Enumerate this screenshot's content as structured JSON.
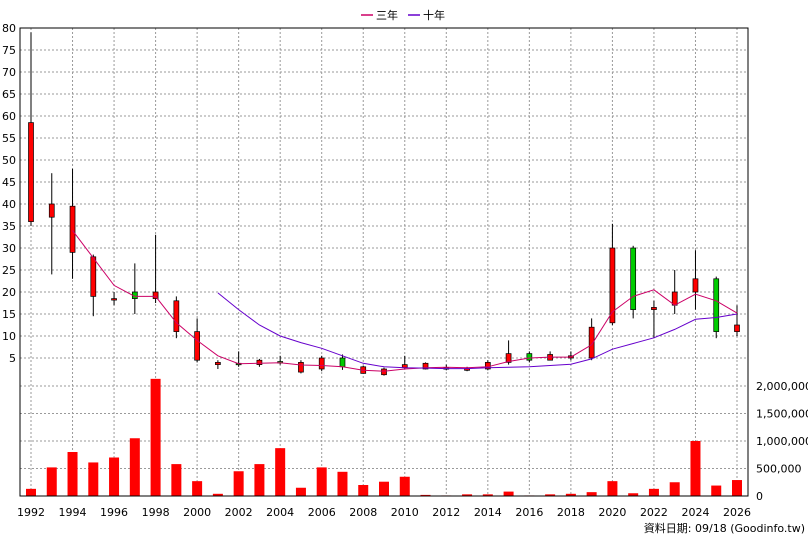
{
  "chart_data": {
    "type": "candlestick+bar",
    "legend": [
      "三年",
      "十年"
    ],
    "legend_position": "top-center",
    "source_note": "資料日期: 09/18 (Goodinfo.tw)",
    "grid": true,
    "price_axis": {
      "min": 0,
      "max": 80,
      "ticks": [
        5,
        10,
        15,
        20,
        25,
        30,
        35,
        40,
        45,
        50,
        55,
        60,
        65,
        70,
        75,
        80
      ]
    },
    "volume_axis": {
      "min": 0,
      "max": 2000000,
      "ticks": [
        0,
        500000,
        1000000,
        1500000,
        2000000
      ],
      "tick_labels": [
        "0",
        "500,000",
        "1,000,000",
        "1,500,000",
        "2,000,000"
      ]
    },
    "x_ticks": [
      "1992",
      "1994",
      "1996",
      "1998",
      "2000",
      "2002",
      "2004",
      "2006",
      "2008",
      "2010",
      "2012",
      "2014",
      "2016",
      "2018",
      "2020",
      "2022",
      "2024",
      "2026"
    ],
    "candles": [
      {
        "year": 1992,
        "open": 36,
        "high": 79,
        "low": 35,
        "close": 58.5
      },
      {
        "year": 1993,
        "open": 37,
        "high": 47,
        "low": 24,
        "close": 40
      },
      {
        "year": 1994,
        "open": 29,
        "high": 48,
        "low": 23,
        "close": 39.5
      },
      {
        "year": 1995,
        "open": 19,
        "high": 28.5,
        "low": 14.5,
        "close": 28
      },
      {
        "year": 1996,
        "open": 18.5,
        "high": 20,
        "low": 17,
        "close": 18.5
      },
      {
        "year": 1997,
        "open": 20,
        "high": 26.5,
        "low": 15,
        "close": 18.5
      },
      {
        "year": 1998,
        "open": 18.5,
        "high": 33,
        "low": 17.5,
        "close": 20
      },
      {
        "year": 1999,
        "open": 11,
        "high": 19,
        "low": 9.5,
        "close": 18
      },
      {
        "year": 2000,
        "open": 4.5,
        "high": 14,
        "low": 4,
        "close": 11
      },
      {
        "year": 2001,
        "open": 3.5,
        "high": 4.5,
        "low": 2.5,
        "close": 4
      },
      {
        "year": 2002,
        "open": 3.8,
        "high": 6.5,
        "low": 3,
        "close": 3.5
      },
      {
        "year": 2003,
        "open": 3.5,
        "high": 4.8,
        "low": 3,
        "close": 4.5
      },
      {
        "year": 2004,
        "open": 4.2,
        "high": 5.5,
        "low": 3.5,
        "close": 4
      },
      {
        "year": 2005,
        "open": 1.8,
        "high": 4.5,
        "low": 1.5,
        "close": 4
      },
      {
        "year": 2006,
        "open": 2.5,
        "high": 5.5,
        "low": 2,
        "close": 5
      },
      {
        "year": 2007,
        "open": 5,
        "high": 5.8,
        "low": 2.3,
        "close": 3
      },
      {
        "year": 2008,
        "open": 1.5,
        "high": 3.2,
        "low": 1.5,
        "close": 3
      },
      {
        "year": 2009,
        "open": 1.2,
        "high": 2.8,
        "low": 1,
        "close": 2.5
      },
      {
        "year": 2010,
        "open": 2.8,
        "high": 5.5,
        "low": 2.5,
        "close": 3.5
      },
      {
        "year": 2011,
        "open": 2.5,
        "high": 4,
        "low": 2.4,
        "close": 3.8
      },
      {
        "year": 2012,
        "open": 2.8,
        "high": 3.5,
        "low": 2.2,
        "close": 2.5
      },
      {
        "year": 2013,
        "open": 2.2,
        "high": 3,
        "low": 2.0,
        "close": 2.6
      },
      {
        "year": 2014,
        "open": 2.5,
        "high": 4.5,
        "low": 2.2,
        "close": 4
      },
      {
        "year": 2015,
        "open": 4,
        "high": 9,
        "low": 3.5,
        "close": 6
      },
      {
        "year": 2016,
        "open": 6,
        "high": 6.5,
        "low": 4.0,
        "close": 4.5
      },
      {
        "year": 2017,
        "open": 4.5,
        "high": 6.5,
        "low": 4.5,
        "close": 5.8
      },
      {
        "year": 2018,
        "open": 5,
        "high": 6.5,
        "low": 4.5,
        "close": 5.5
      },
      {
        "year": 2019,
        "open": 5,
        "high": 14,
        "low": 4.5,
        "close": 12
      },
      {
        "year": 2020,
        "open": 13,
        "high": 35.5,
        "low": 12.5,
        "close": 30
      },
      {
        "year": 2021,
        "open": 30,
        "high": 30.5,
        "low": 14,
        "close": 16
      },
      {
        "year": 2022,
        "open": 16,
        "high": 18,
        "low": 9.5,
        "close": 16.5
      },
      {
        "year": 2023,
        "open": 17,
        "high": 25,
        "low": 15,
        "close": 20
      },
      {
        "year": 2024,
        "open": 20,
        "high": 29.5,
        "low": 16,
        "close": 23
      },
      {
        "year": 2025,
        "open": 23,
        "high": 23.5,
        "low": 9.5,
        "close": 11
      },
      {
        "year": 2026,
        "open": 11,
        "high": 17,
        "low": 10,
        "close": 12.5
      }
    ],
    "volume": [
      {
        "year": 1992,
        "value": 130000
      },
      {
        "year": 1993,
        "value": 520000
      },
      {
        "year": 1994,
        "value": 800000
      },
      {
        "year": 1995,
        "value": 610000
      },
      {
        "year": 1996,
        "value": 700000
      },
      {
        "year": 1997,
        "value": 1050000
      },
      {
        "year": 1998,
        "value": 2130000
      },
      {
        "year": 1999,
        "value": 580000
      },
      {
        "year": 2000,
        "value": 270000
      },
      {
        "year": 2001,
        "value": 40000
      },
      {
        "year": 2002,
        "value": 450000
      },
      {
        "year": 2003,
        "value": 580000
      },
      {
        "year": 2004,
        "value": 870000
      },
      {
        "year": 2005,
        "value": 150000
      },
      {
        "year": 2006,
        "value": 520000
      },
      {
        "year": 2007,
        "value": 440000
      },
      {
        "year": 2008,
        "value": 200000
      },
      {
        "year": 2009,
        "value": 260000
      },
      {
        "year": 2010,
        "value": 350000
      },
      {
        "year": 2011,
        "value": 20000
      },
      {
        "year": 2012,
        "value": 10000
      },
      {
        "year": 2013,
        "value": 30000
      },
      {
        "year": 2014,
        "value": 30000
      },
      {
        "year": 2015,
        "value": 80000
      },
      {
        "year": 2016,
        "value": 10000
      },
      {
        "year": 2017,
        "value": 30000
      },
      {
        "year": 2018,
        "value": 40000
      },
      {
        "year": 2019,
        "value": 70000
      },
      {
        "year": 2020,
        "value": 270000
      },
      {
        "year": 2021,
        "value": 50000
      },
      {
        "year": 2022,
        "value": 130000
      },
      {
        "year": 2023,
        "value": 250000
      },
      {
        "year": 2024,
        "value": 1000000
      },
      {
        "year": 2025,
        "value": 190000
      },
      {
        "year": 2026,
        "value": 290000
      }
    ],
    "series": [
      {
        "name": "三年",
        "color": "#cc0066",
        "points": [
          [
            1994,
            34
          ],
          [
            1996,
            21.5
          ],
          [
            1997,
            19
          ],
          [
            1998,
            19
          ],
          [
            1999,
            13
          ],
          [
            2000,
            9
          ],
          [
            2001,
            5.5
          ],
          [
            2002,
            3.7
          ],
          [
            2003,
            3.8
          ],
          [
            2004,
            3.9
          ],
          [
            2005,
            3.4
          ],
          [
            2006,
            3.3
          ],
          [
            2007,
            3.0
          ],
          [
            2008,
            2.2
          ],
          [
            2009,
            2.0
          ],
          [
            2010,
            2.5
          ],
          [
            2011,
            2.8
          ],
          [
            2012,
            2.9
          ],
          [
            2013,
            2.8
          ],
          [
            2014,
            3.0
          ],
          [
            2015,
            4.2
          ],
          [
            2016,
            5.0
          ],
          [
            2017,
            5.2
          ],
          [
            2018,
            5.2
          ],
          [
            2019,
            8
          ],
          [
            2020,
            15.5
          ],
          [
            2021,
            19
          ],
          [
            2022,
            20.5
          ],
          [
            2023,
            17
          ],
          [
            2024,
            19.5
          ],
          [
            2025,
            18
          ],
          [
            2026,
            15.2
          ]
        ]
      },
      {
        "name": "十年",
        "color": "#6600cc",
        "points": [
          [
            2001,
            19.8
          ],
          [
            2002,
            16
          ],
          [
            2003,
            12.5
          ],
          [
            2004,
            10
          ],
          [
            2005,
            8.5
          ],
          [
            2006,
            7.2
          ],
          [
            2007,
            5.5
          ],
          [
            2008,
            3.8
          ],
          [
            2009,
            3.0
          ],
          [
            2010,
            2.8
          ],
          [
            2011,
            2.7
          ],
          [
            2012,
            2.6
          ],
          [
            2013,
            2.6
          ],
          [
            2014,
            2.8
          ],
          [
            2015,
            2.9
          ],
          [
            2016,
            3.0
          ],
          [
            2017,
            3.3
          ],
          [
            2018,
            3.6
          ],
          [
            2019,
            4.8
          ],
          [
            2020,
            7.0
          ],
          [
            2021,
            8.3
          ],
          [
            2022,
            9.6
          ],
          [
            2023,
            11.5
          ],
          [
            2024,
            13.8
          ],
          [
            2025,
            14.2
          ],
          [
            2026,
            15.0
          ]
        ]
      }
    ],
    "colors": {
      "up": "#ff0000",
      "down": "#00cc00",
      "volume": "#ff0000",
      "wick": "#000000"
    }
  }
}
